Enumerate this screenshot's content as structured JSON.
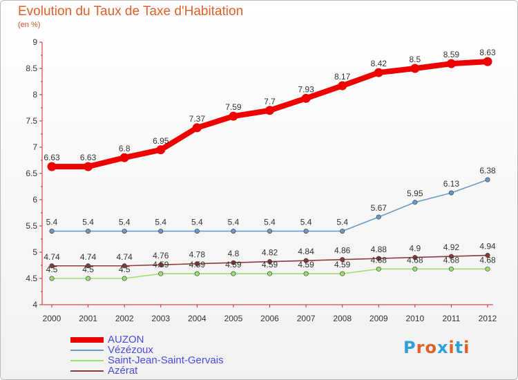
{
  "header": {
    "title": "Evolution du Taux de Taxe d'Habitation",
    "unit": "(en %)"
  },
  "logo": {
    "letters": [
      "P",
      "r",
      "o",
      "x",
      "i",
      "t",
      "i"
    ],
    "colors": [
      "#2f9fd7",
      "#e0602a",
      "#e0602a",
      "#2f9fd7",
      "#e0602a",
      "#2f9fd7",
      "#e0602a"
    ]
  },
  "chart_data": {
    "type": "line",
    "title": "Evolution du Taux de Taxe d'Habitation",
    "ylabel": "(en %)",
    "xlabel": "",
    "x": [
      "2000",
      "2001",
      "2002",
      "2003",
      "2004",
      "2005",
      "2006",
      "2007",
      "2008",
      "2009",
      "2010",
      "2011",
      "2012"
    ],
    "ylim": [
      4,
      9
    ],
    "yticks": [
      "4",
      "4.5",
      "5",
      "5.5",
      "6",
      "6.5",
      "7",
      "7.5",
      "8",
      "8.5",
      "9"
    ],
    "grid": false,
    "legend": "bottom-left",
    "series": [
      {
        "name": "AUZON",
        "color": "#ee0000",
        "values": [
          6.63,
          6.63,
          6.8,
          6.95,
          7.37,
          7.59,
          7.7,
          7.93,
          8.17,
          8.42,
          8.5,
          8.59,
          8.63
        ],
        "labels": [
          "6.63",
          "6.63",
          "6.8",
          "6.95",
          "7.37",
          "7.59",
          "7.7",
          "7.93",
          "8.17",
          "8.42",
          "8.5",
          "8.59",
          "8.63"
        ]
      },
      {
        "name": "Vézézoux",
        "color": "#6a9ac8",
        "values": [
          5.4,
          5.4,
          5.4,
          5.4,
          5.4,
          5.4,
          5.4,
          5.4,
          5.4,
          5.67,
          5.95,
          6.13,
          6.38
        ],
        "labels": [
          "5.4",
          "5.4",
          "5.4",
          "5.4",
          "5.4",
          "5.4",
          "5.4",
          "5.4",
          "5.4",
          "5.67",
          "5.95",
          "6.13",
          "6.38"
        ]
      },
      {
        "name": "Saint-Jean-Saint-Gervais",
        "color": "#99e070",
        "values": [
          4.5,
          4.5,
          4.5,
          4.59,
          4.59,
          4.59,
          4.59,
          4.59,
          4.59,
          4.68,
          4.68,
          4.68,
          4.68
        ],
        "labels": [
          "4.5",
          "4.5",
          "4.5",
          "4.59",
          "4.59",
          "4.59",
          "4.59",
          "4.59",
          "4.59",
          "4.68",
          "4.68",
          "4.68",
          "4.68"
        ]
      },
      {
        "name": "Azérat",
        "color": "#8a3a3a",
        "values": [
          4.74,
          4.74,
          4.74,
          4.76,
          4.78,
          4.8,
          4.82,
          4.84,
          4.86,
          4.88,
          4.9,
          4.92,
          4.94
        ],
        "labels": [
          "4.74",
          "4.74",
          "4.74",
          "4.76",
          "4.78",
          "4.8",
          "4.82",
          "4.84",
          "4.86",
          "4.88",
          "4.9",
          "4.92",
          "4.94"
        ]
      }
    ]
  }
}
